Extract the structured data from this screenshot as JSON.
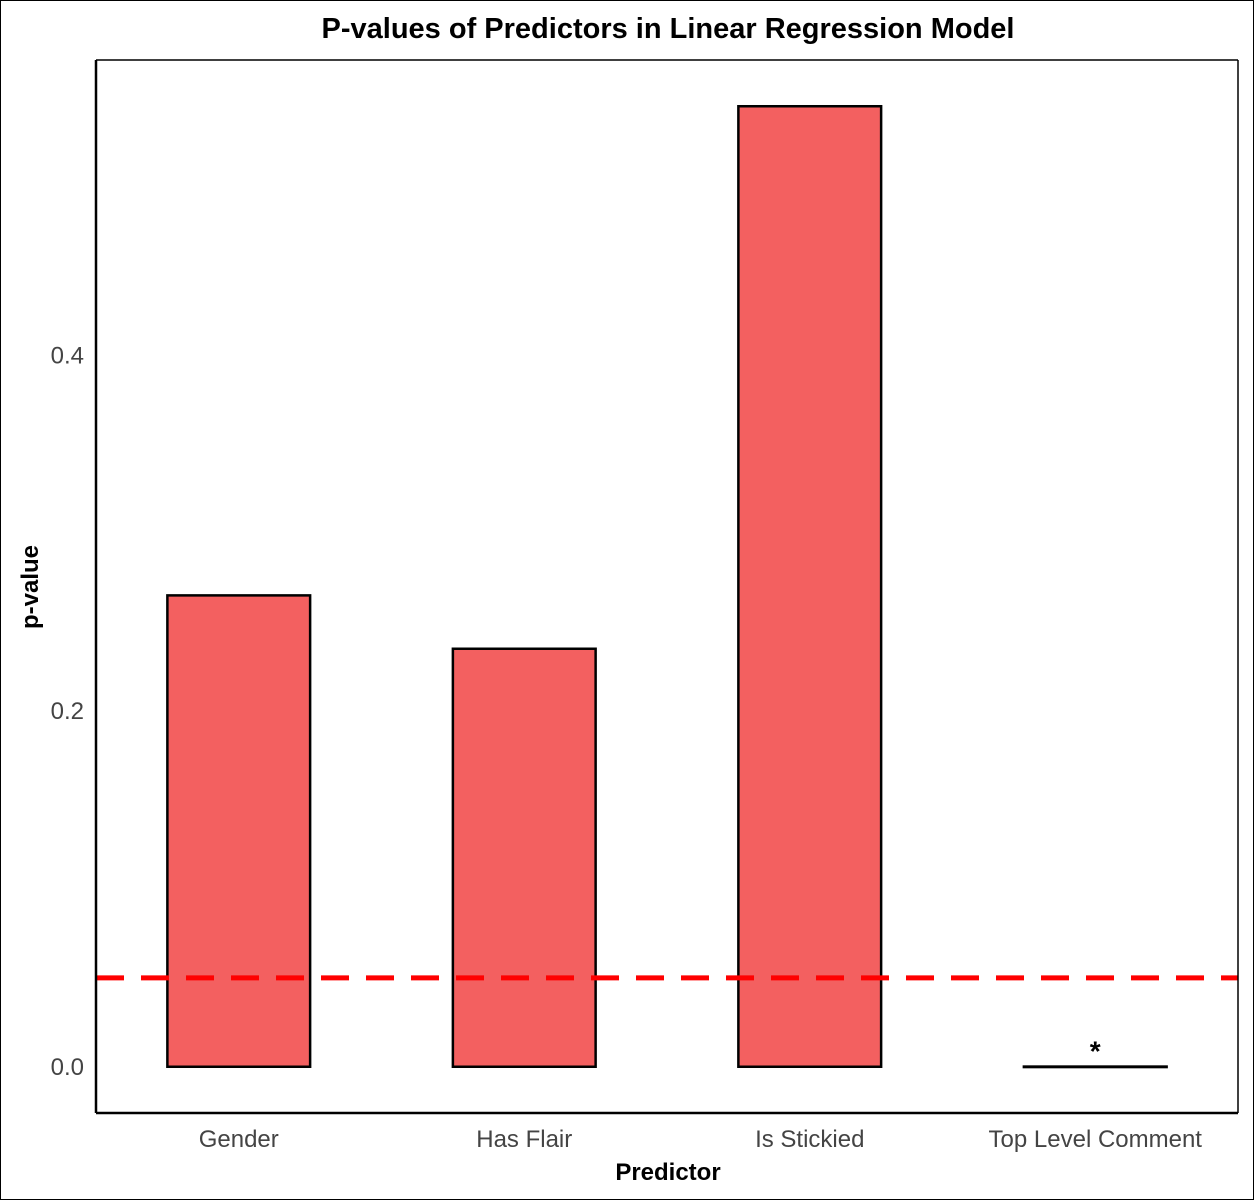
{
  "chart_data": {
    "type": "bar",
    "title": "P-values of Predictors in Linear Regression Model",
    "xlabel": "Predictor",
    "ylabel": "p-value",
    "categories": [
      "Gender",
      "Has Flair",
      "Is Stickied",
      "Top Level Comment"
    ],
    "values": [
      0.265,
      0.235,
      0.54,
      0.0001
    ],
    "ylim": [
      -0.026,
      0.566
    ],
    "yticks": [
      0.0,
      0.2,
      0.4
    ],
    "ytick_labels": [
      "0.0",
      "0.2",
      "0.4"
    ],
    "threshold": 0.05,
    "annotations": [
      {
        "category": "Top Level Comment",
        "text": "*"
      }
    ],
    "bar_color": "#f36060",
    "threshold_color": "#ff0000",
    "grid": false,
    "legend": "none"
  }
}
